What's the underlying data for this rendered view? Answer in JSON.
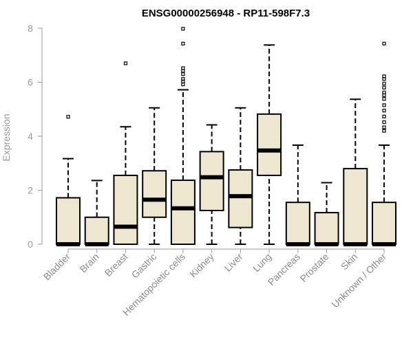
{
  "chart_data": {
    "type": "boxplot",
    "title": "ENSG00000256948 - RP11-598F7.3",
    "xlabel": "",
    "ylabel": "Expression",
    "ylim": [
      0,
      8
    ],
    "yticks": [
      "0",
      "2",
      "4",
      "6",
      "8"
    ],
    "box_color": "#ede7cf",
    "categories": [
      "Bladder",
      "Brain",
      "Breast",
      "Gastric",
      "Hematopoietic cells",
      "Kidney",
      "Liver",
      "Lung",
      "Pancreas",
      "Prostate",
      "Skin",
      "Unknown / Other"
    ],
    "boxes": [
      {
        "category": "Bladder",
        "min": 0,
        "q1": 0,
        "median": 0,
        "q3": 1.72,
        "max": 3.17,
        "outliers": [
          4.72
        ]
      },
      {
        "category": "Brain",
        "min": 0,
        "q1": 0,
        "median": 0,
        "q3": 1.0,
        "max": 2.36,
        "outliers": []
      },
      {
        "category": "Breast",
        "min": 0,
        "q1": 0,
        "median": 0.65,
        "q3": 2.55,
        "max": 4.35,
        "outliers": [
          6.7
        ]
      },
      {
        "category": "Gastric",
        "min": 0,
        "q1": 1.0,
        "median": 1.65,
        "q3": 2.72,
        "max": 5.05,
        "outliers": []
      },
      {
        "category": "Hematopoietic cells",
        "min": 0,
        "q1": 0,
        "median": 1.33,
        "q3": 2.37,
        "max": 5.72,
        "outliers": [
          5.92,
          6.03,
          6.12,
          6.3,
          6.42,
          6.52,
          7.43,
          7.98
        ]
      },
      {
        "category": "Kidney",
        "min": 0,
        "q1": 1.25,
        "median": 2.48,
        "q3": 3.43,
        "max": 4.42,
        "outliers": []
      },
      {
        "category": "Liver",
        "min": 0,
        "q1": 0.62,
        "median": 1.78,
        "q3": 2.75,
        "max": 5.05,
        "outliers": []
      },
      {
        "category": "Lung",
        "min": 0,
        "q1": 2.55,
        "median": 3.47,
        "q3": 4.82,
        "max": 7.38,
        "outliers": []
      },
      {
        "category": "Pancreas",
        "min": 0,
        "q1": 0,
        "median": 0,
        "q3": 1.55,
        "max": 3.67,
        "outliers": []
      },
      {
        "category": "Prostate",
        "min": 0,
        "q1": 0,
        "median": 0,
        "q3": 1.17,
        "max": 2.28,
        "outliers": []
      },
      {
        "category": "Skin",
        "min": 0,
        "q1": 0,
        "median": 0,
        "q3": 2.8,
        "max": 5.37,
        "outliers": []
      },
      {
        "category": "Unknown / Other",
        "min": 0,
        "q1": 0,
        "median": 0,
        "q3": 1.55,
        "max": 3.67,
        "outliers": [
          4.2,
          4.33,
          4.52,
          4.73,
          4.95,
          5.15,
          5.38,
          5.52,
          5.62,
          5.8,
          5.95,
          6.12,
          6.22,
          7.43
        ]
      }
    ]
  }
}
